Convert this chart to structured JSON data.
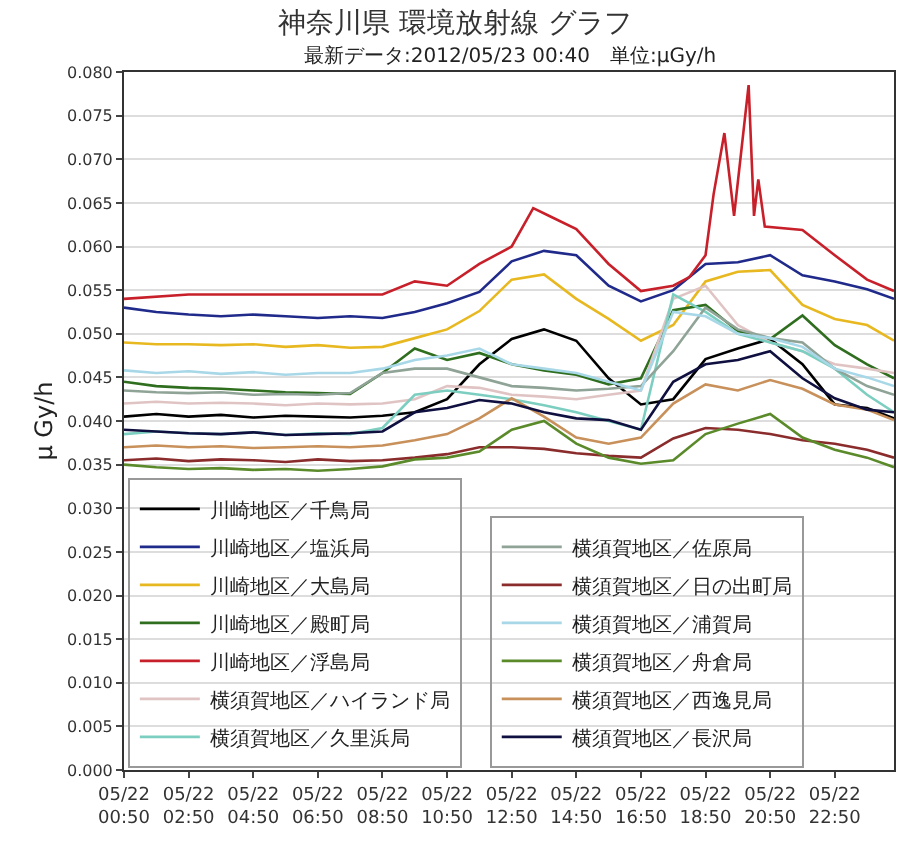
{
  "chart_data": {
    "type": "line",
    "title": "神奈川県 環境放射線 グラフ",
    "subtitle": "最新データ:2012/05/23 00:40　単位:μGy/h",
    "ylabel": "μ Gy/h",
    "x": [
      "2012-05-22T00:50",
      "2012-05-22T01:50",
      "2012-05-22T02:50",
      "2012-05-22T03:50",
      "2012-05-22T04:50",
      "2012-05-22T05:50",
      "2012-05-22T06:50",
      "2012-05-22T07:50",
      "2012-05-22T08:50",
      "2012-05-22T09:50",
      "2012-05-22T10:50",
      "2012-05-22T11:50",
      "2012-05-22T12:50",
      "2012-05-22T13:50",
      "2012-05-22T14:50",
      "2012-05-22T15:50",
      "2012-05-22T16:50",
      "2012-05-22T17:50",
      "2012-05-22T18:50",
      "2012-05-22T19:50",
      "2012-05-22T20:50",
      "2012-05-22T21:50",
      "2012-05-22T22:50",
      "2012-05-22T23:50",
      "2012-05-23T00:40"
    ],
    "series": [
      {
        "name": "川崎地区／千鳥局",
        "color": "#000000",
        "values": [
          0.0405,
          0.0408,
          0.0405,
          0.0407,
          0.0404,
          0.0406,
          0.0405,
          0.0404,
          0.0406,
          0.041,
          0.0425,
          0.0465,
          0.0494,
          0.0505,
          0.0492,
          0.0449,
          0.0419,
          0.0425,
          0.0471,
          0.0483,
          0.0494,
          0.0465,
          0.0419,
          0.0415,
          0.0403
        ]
      },
      {
        "name": "川崎地区／塩浜局",
        "color": "#1f2a8a",
        "values": [
          0.053,
          0.0525,
          0.0522,
          0.052,
          0.0522,
          0.052,
          0.0518,
          0.052,
          0.0518,
          0.0525,
          0.0535,
          0.0548,
          0.0583,
          0.0595,
          0.059,
          0.0555,
          0.0537,
          0.055,
          0.058,
          0.0582,
          0.059,
          0.0567,
          0.056,
          0.0551,
          0.054
        ]
      },
      {
        "name": "川崎地区／大島局",
        "color": "#e8b820",
        "values": [
          0.049,
          0.0488,
          0.0488,
          0.0487,
          0.0488,
          0.0485,
          0.0487,
          0.0484,
          0.0485,
          0.0495,
          0.0505,
          0.0526,
          0.0562,
          0.0568,
          0.054,
          0.0517,
          0.0492,
          0.051,
          0.056,
          0.0571,
          0.0573,
          0.0533,
          0.0517,
          0.051,
          0.0492
        ]
      },
      {
        "name": "川崎地区／殿町局",
        "color": "#2f6e1f",
        "values": [
          0.0445,
          0.044,
          0.0438,
          0.0437,
          0.0435,
          0.0433,
          0.0432,
          0.0431,
          0.0455,
          0.0483,
          0.047,
          0.0478,
          0.0465,
          0.0458,
          0.0453,
          0.0442,
          0.0449,
          0.0527,
          0.0533,
          0.0503,
          0.0494,
          0.0521,
          0.0487,
          0.0465,
          0.0449
        ]
      },
      {
        "name": "川崎地区／浮島局",
        "color": "#c8202a",
        "x": [
          "2012-05-22T00:50",
          "2012-05-22T02:50",
          "2012-05-22T04:50",
          "2012-05-22T06:50",
          "2012-05-22T08:50",
          "2012-05-22T09:50",
          "2012-05-22T10:50",
          "2012-05-22T11:50",
          "2012-05-22T12:50",
          "2012-05-22T13:30",
          "2012-05-22T14:00",
          "2012-05-22T14:50",
          "2012-05-22T15:50",
          "2012-05-22T16:50",
          "2012-05-22T17:50",
          "2012-05-22T18:20",
          "2012-05-22T18:50",
          "2012-05-22T19:05",
          "2012-05-22T19:25",
          "2012-05-22T19:43",
          "2012-05-22T20:10",
          "2012-05-22T20:20",
          "2012-05-22T20:28",
          "2012-05-22T20:40",
          "2012-05-22T21:50",
          "2012-05-22T22:50",
          "2012-05-22T23:50",
          "2012-05-23T00:40"
        ],
        "values": [
          0.054,
          0.0545,
          0.0545,
          0.0545,
          0.0545,
          0.056,
          0.0555,
          0.058,
          0.06,
          0.0644,
          0.0635,
          0.062,
          0.058,
          0.0549,
          0.0555,
          0.0565,
          0.059,
          0.066,
          0.073,
          0.0635,
          0.0785,
          0.0635,
          0.0677,
          0.0623,
          0.0619,
          0.059,
          0.0562,
          0.0549
        ]
      },
      {
        "name": "横須賀地区／ハイランド局",
        "color": "#e0c4c4",
        "values": [
          0.042,
          0.0422,
          0.042,
          0.0421,
          0.042,
          0.0418,
          0.042,
          0.0419,
          0.042,
          0.0425,
          0.044,
          0.0438,
          0.043,
          0.0428,
          0.0425,
          0.043,
          0.0435,
          0.054,
          0.0555,
          0.051,
          0.049,
          0.048,
          0.0465,
          0.046,
          0.0455
        ]
      },
      {
        "name": "横須賀地区／久里浜局",
        "color": "#7ccfc0",
        "values": [
          0.0385,
          0.0388,
          0.0386,
          0.0385,
          0.0387,
          0.0384,
          0.0386,
          0.0385,
          0.0392,
          0.043,
          0.0435,
          0.043,
          0.0425,
          0.0418,
          0.041,
          0.04,
          0.039,
          0.0545,
          0.0525,
          0.05,
          0.049,
          0.048,
          0.046,
          0.043,
          0.041
        ]
      },
      {
        "name": "横須賀地区／佐原局",
        "color": "#8fa397",
        "values": [
          0.0435,
          0.0433,
          0.0432,
          0.0433,
          0.043,
          0.0431,
          0.043,
          0.0432,
          0.0455,
          0.046,
          0.046,
          0.045,
          0.044,
          0.0438,
          0.0435,
          0.0437,
          0.044,
          0.048,
          0.053,
          0.0505,
          0.0495,
          0.049,
          0.046,
          0.044,
          0.043
        ]
      },
      {
        "name": "横須賀地区／日の出町局",
        "color": "#8b2c2c",
        "values": [
          0.0355,
          0.0357,
          0.0354,
          0.0356,
          0.0355,
          0.0353,
          0.0356,
          0.0354,
          0.0355,
          0.0358,
          0.0362,
          0.037,
          0.037,
          0.0368,
          0.0363,
          0.036,
          0.0358,
          0.038,
          0.0392,
          0.039,
          0.0385,
          0.0378,
          0.0374,
          0.0367,
          0.0358
        ]
      },
      {
        "name": "横須賀地区／浦賀局",
        "color": "#a8d8e8",
        "values": [
          0.0458,
          0.0455,
          0.0457,
          0.0454,
          0.0456,
          0.0453,
          0.0455,
          0.0455,
          0.046,
          0.047,
          0.0475,
          0.0483,
          0.0465,
          0.046,
          0.0455,
          0.0445,
          0.0435,
          0.0525,
          0.052,
          0.05,
          0.0495,
          0.0485,
          0.046,
          0.045,
          0.044
        ]
      },
      {
        "name": "横須賀地区／舟倉局",
        "color": "#5a8a2a",
        "values": [
          0.035,
          0.0347,
          0.0345,
          0.0346,
          0.0344,
          0.0345,
          0.0343,
          0.0345,
          0.0348,
          0.0356,
          0.0358,
          0.0365,
          0.039,
          0.04,
          0.0374,
          0.0358,
          0.0351,
          0.0355,
          0.0385,
          0.0397,
          0.0408,
          0.0381,
          0.0367,
          0.0358,
          0.0347
        ]
      },
      {
        "name": "横須賀地区／西逸見局",
        "color": "#c8905a",
        "values": [
          0.037,
          0.0372,
          0.037,
          0.0371,
          0.0369,
          0.037,
          0.0371,
          0.037,
          0.0372,
          0.0378,
          0.0385,
          0.0403,
          0.0426,
          0.0405,
          0.0381,
          0.0374,
          0.0381,
          0.042,
          0.0442,
          0.0435,
          0.0447,
          0.0437,
          0.0419,
          0.0413,
          0.0401
        ]
      },
      {
        "name": "横須賀地区／長沢局",
        "color": "#101040",
        "values": [
          0.039,
          0.0388,
          0.0386,
          0.0385,
          0.0387,
          0.0384,
          0.0385,
          0.0386,
          0.0388,
          0.041,
          0.0415,
          0.0424,
          0.042,
          0.041,
          0.0403,
          0.0401,
          0.039,
          0.0445,
          0.0465,
          0.047,
          0.048,
          0.0449,
          0.0426,
          0.0413,
          0.041
        ]
      }
    ],
    "xlim": [
      "2012-05-22T00:50",
      "2012-05-23T00:40"
    ],
    "xticks": [
      {
        "value": "2012-05-22T00:50",
        "label": "05/22\n00:50"
      },
      {
        "value": "2012-05-22T02:50",
        "label": "05/22\n02:50"
      },
      {
        "value": "2012-05-22T04:50",
        "label": "05/22\n04:50"
      },
      {
        "value": "2012-05-22T06:50",
        "label": "05/22\n06:50"
      },
      {
        "value": "2012-05-22T08:50",
        "label": "05/22\n08:50"
      },
      {
        "value": "2012-05-22T10:50",
        "label": "05/22\n10:50"
      },
      {
        "value": "2012-05-22T12:50",
        "label": "05/22\n12:50"
      },
      {
        "value": "2012-05-22T14:50",
        "label": "05/22\n14:50"
      },
      {
        "value": "2012-05-22T16:50",
        "label": "05/22\n16:50"
      },
      {
        "value": "2012-05-22T18:50",
        "label": "05/22\n18:50"
      },
      {
        "value": "2012-05-22T20:50",
        "label": "05/22\n20:50"
      },
      {
        "value": "2012-05-22T22:50",
        "label": "05/22\n22:50"
      }
    ],
    "ylim": [
      0,
      0.08
    ],
    "yticks": [
      {
        "value": 0,
        "label": "0.000"
      },
      {
        "value": 0.005,
        "label": "0.005"
      },
      {
        "value": 0.01,
        "label": "0.010"
      },
      {
        "value": 0.015,
        "label": "0.015"
      },
      {
        "value": 0.02,
        "label": "0.020"
      },
      {
        "value": 0.025,
        "label": "0.025"
      },
      {
        "value": 0.03,
        "label": "0.030"
      },
      {
        "value": 0.035,
        "label": "0.035"
      },
      {
        "value": 0.04,
        "label": "0.040"
      },
      {
        "value": 0.045,
        "label": "0.045"
      },
      {
        "value": 0.05,
        "label": "0.050"
      },
      {
        "value": 0.055,
        "label": "0.055"
      },
      {
        "value": 0.06,
        "label": "0.060"
      },
      {
        "value": 0.065,
        "label": "0.065"
      },
      {
        "value": 0.07,
        "label": "0.070"
      },
      {
        "value": 0.075,
        "label": "0.075"
      },
      {
        "value": 0.08,
        "label": "0.080"
      }
    ],
    "grid": "y",
    "legend": "bottom left",
    "marker": "none",
    "line_style": "solid"
  }
}
